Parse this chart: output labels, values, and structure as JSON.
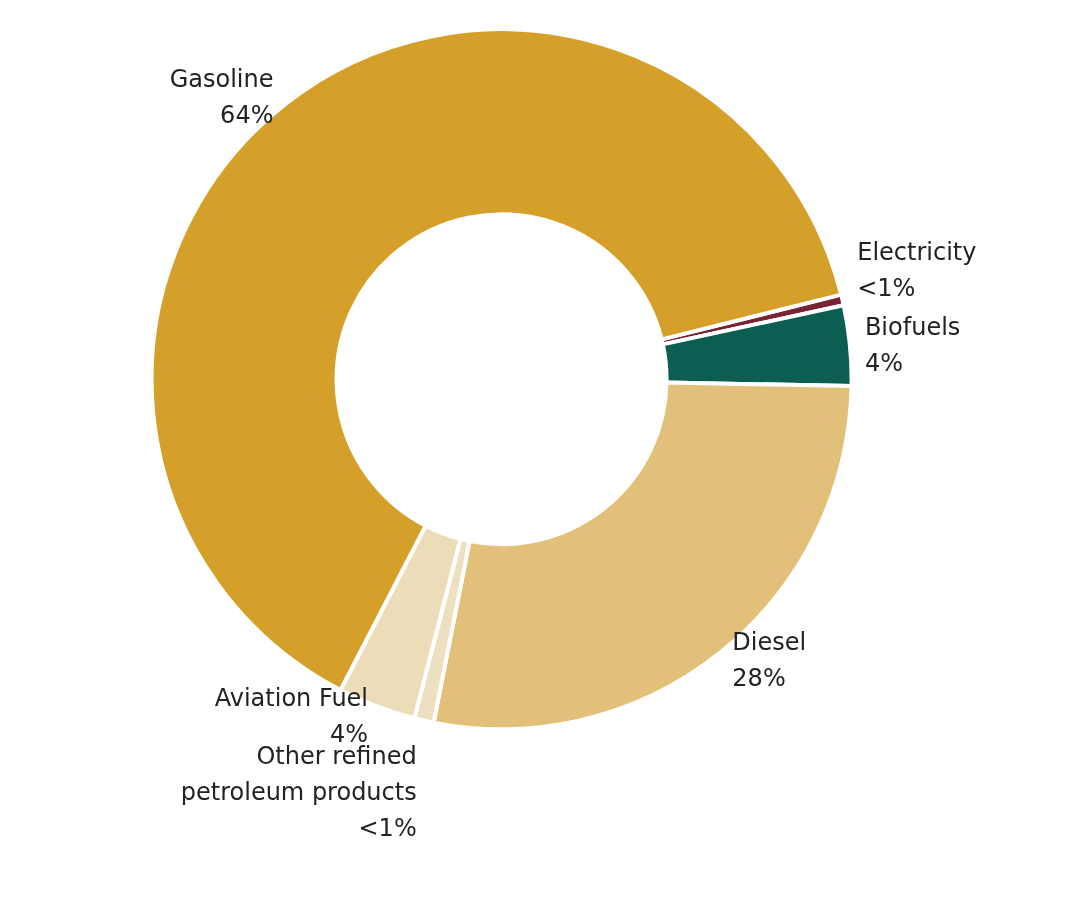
{
  "chart_data": {
    "type": "donut",
    "categories": [
      "Electricity",
      "Biofuels",
      "Diesel",
      "Other refined petroleum products",
      "Aviation Fuel",
      "Gasoline"
    ],
    "values": [
      0.5,
      3.7,
      27.8,
      0.9,
      3.6,
      63.5
    ],
    "value_labels": [
      "<1%",
      "4%",
      "28%",
      "<1%",
      "4%",
      "64%"
    ],
    "colors": [
      "#7b2335",
      "#0d5e52",
      "#e2c07a",
      "#ede0c0",
      "#ecdcb8",
      "#d4a02a"
    ]
  }
}
